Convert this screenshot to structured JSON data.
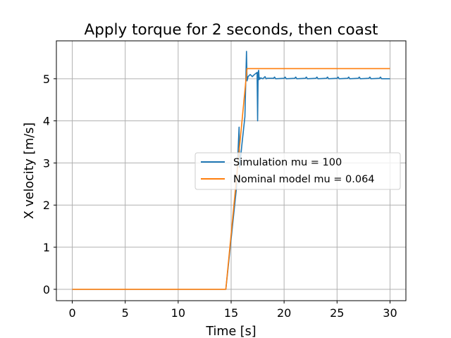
{
  "chart_data": {
    "type": "line",
    "title": "Apply torque for 2 seconds, then coast",
    "xlabel": "Time [s]",
    "ylabel": "X velocity [m/s]",
    "xlim": [
      -1.5,
      31.5
    ],
    "ylim": [
      -0.27,
      5.9
    ],
    "xticks": [
      0,
      5,
      10,
      15,
      20,
      25,
      30
    ],
    "yticks": [
      0,
      1,
      2,
      3,
      4,
      5
    ],
    "grid": true,
    "legend_position": "center-right",
    "series": [
      {
        "name": "Simulation mu = 100",
        "color": "#1f77b4",
        "x": [
          0,
          14.5,
          15,
          15.5,
          15.75,
          15.8,
          15.85,
          16.0,
          16.3,
          16.45,
          16.5,
          16.6,
          16.8,
          17.0,
          17.2,
          17.45,
          17.5,
          17.55,
          17.6,
          17.65,
          17.7,
          17.75,
          17.8,
          18.0,
          18.2,
          18.3,
          18.4,
          19.0,
          19.1,
          19.2,
          20.0,
          20.1,
          20.2,
          21.0,
          21.1,
          21.2,
          22.0,
          22.1,
          22.2,
          23.0,
          23.1,
          23.2,
          24.0,
          24.1,
          24.2,
          25.0,
          25.1,
          25.2,
          26.0,
          26.1,
          26.2,
          27.0,
          27.1,
          27.2,
          28.0,
          28.1,
          28.2,
          29.0,
          29.1,
          29.2,
          30.0
        ],
        "y": [
          0,
          0,
          1.2,
          2.4,
          3.85,
          2.9,
          3.0,
          3.4,
          4.1,
          5.65,
          4.95,
          5.05,
          5.1,
          5.05,
          5.1,
          5.15,
          4.0,
          5.15,
          5.2,
          4.98,
          5.02,
          5.0,
          5.02,
          5.0,
          5.05,
          5.0,
          5.01,
          5.01,
          5.04,
          5.0,
          5.01,
          5.04,
          5.0,
          5.01,
          5.04,
          5.0,
          5.01,
          5.04,
          5.0,
          5.01,
          5.04,
          5.0,
          5.01,
          5.04,
          5.0,
          5.01,
          5.04,
          5.0,
          5.01,
          5.04,
          5.0,
          5.01,
          5.04,
          5.0,
          5.01,
          5.04,
          5.0,
          5.01,
          5.04,
          5.0,
          5.0
        ]
      },
      {
        "name": "Nominal model mu = 0.064",
        "color": "#ff7f0e",
        "x": [
          0,
          14.5,
          16.5,
          30
        ],
        "y": [
          0,
          0,
          5.24,
          5.24
        ]
      }
    ]
  }
}
